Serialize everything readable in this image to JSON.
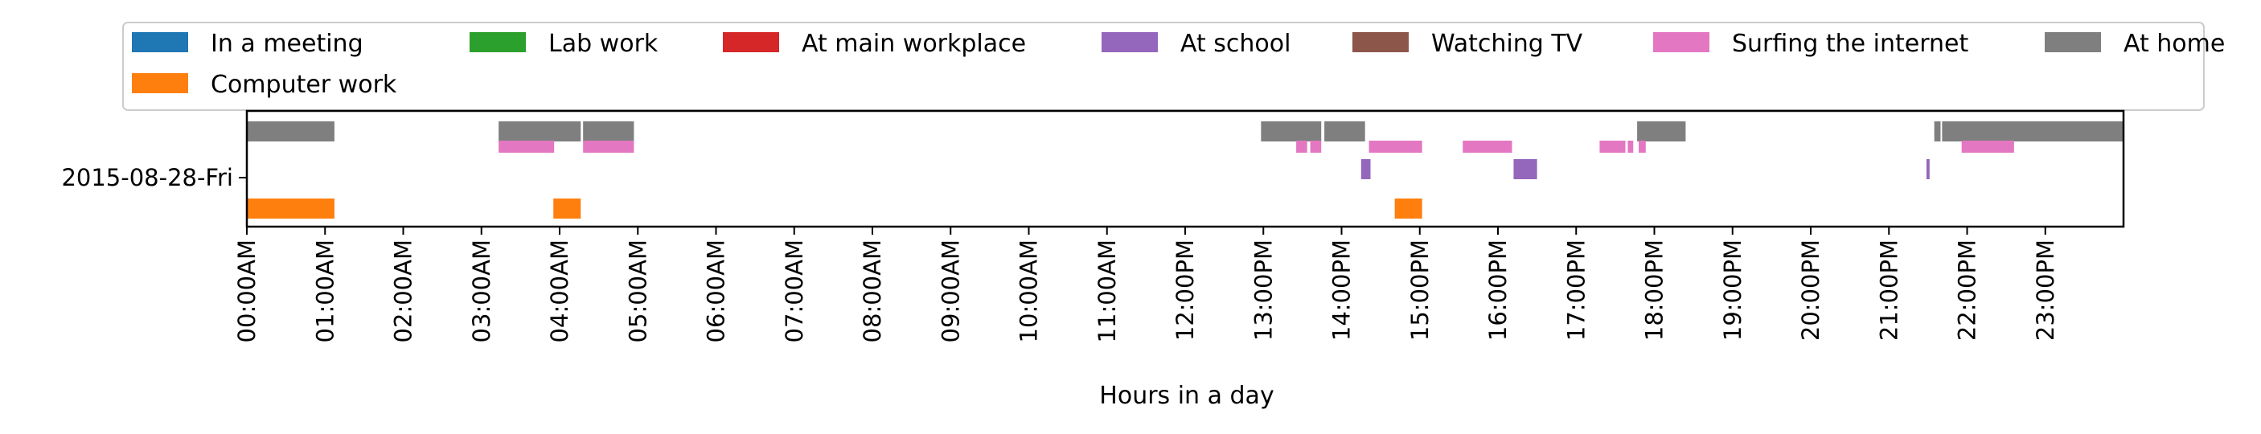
{
  "chart_data": {
    "type": "timeline",
    "xlabel": "Hours in a day",
    "ylabel": "",
    "y_categories": [
      "2015-08-28-Fri"
    ],
    "x_range_hours": [
      0,
      24
    ],
    "x_ticks": [
      "00:00AM",
      "01:00AM",
      "02:00AM",
      "03:00AM",
      "04:00AM",
      "05:00AM",
      "06:00AM",
      "07:00AM",
      "08:00AM",
      "09:00AM",
      "10:00AM",
      "11:00AM",
      "12:00PM",
      "13:00PM",
      "14:00PM",
      "15:00PM",
      "16:00PM",
      "17:00PM",
      "18:00PM",
      "19:00PM",
      "20:00PM",
      "21:00PM",
      "22:00PM",
      "23:00PM"
    ],
    "legend_position": "top",
    "legend": [
      {
        "name": "In a meeting",
        "color": "#1f77b4"
      },
      {
        "name": "Lab work",
        "color": "#2ca02c"
      },
      {
        "name": "At main workplace",
        "color": "#d62728"
      },
      {
        "name": "At school",
        "color": "#9467bd"
      },
      {
        "name": "Watching TV",
        "color": "#8c564b"
      },
      {
        "name": "Surfing the internet",
        "color": "#e377c2"
      },
      {
        "name": "At home",
        "color": "#7f7f7f"
      },
      {
        "name": "Computer work",
        "color": "#ff7f0e"
      }
    ],
    "series": [
      {
        "name": "At home",
        "color": "#7f7f7f",
        "intervals": [
          [
            0.0,
            1.12
          ],
          [
            3.22,
            4.27
          ],
          [
            4.3,
            4.95
          ],
          [
            12.97,
            13.74
          ],
          [
            13.78,
            14.3
          ],
          [
            17.78,
            18.4
          ],
          [
            21.58,
            21.66
          ],
          [
            21.68,
            24.0
          ]
        ]
      },
      {
        "name": "Surfing the internet",
        "color": "#e377c2",
        "intervals": [
          [
            3.22,
            3.93
          ],
          [
            4.3,
            4.95
          ],
          [
            13.42,
            13.56
          ],
          [
            13.6,
            13.74
          ],
          [
            14.35,
            15.03
          ],
          [
            15.55,
            16.18
          ],
          [
            17.3,
            17.63
          ],
          [
            17.66,
            17.73
          ],
          [
            17.8,
            17.89
          ],
          [
            21.93,
            22.6
          ]
        ]
      },
      {
        "name": "At school",
        "color": "#9467bd",
        "intervals": [
          [
            14.25,
            14.37
          ],
          [
            16.2,
            16.5
          ],
          [
            21.48,
            21.52
          ]
        ]
      },
      {
        "name": "Computer work",
        "color": "#ff7f0e",
        "intervals": [
          [
            0.0,
            1.12
          ],
          [
            3.92,
            4.27
          ],
          [
            14.68,
            15.03
          ]
        ]
      }
    ]
  }
}
